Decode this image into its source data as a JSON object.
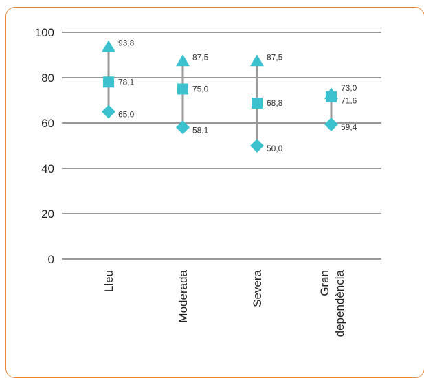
{
  "chart_data": {
    "type": "range-marker",
    "title": "",
    "xlabel": "",
    "ylabel": "",
    "ylim": [
      0,
      100
    ],
    "yticks": [
      0,
      20,
      40,
      60,
      80,
      100
    ],
    "grid": "horizontal",
    "categories": [
      [
        "Lleu"
      ],
      [
        "Moderada"
      ],
      [
        "Severa"
      ],
      [
        "Gran",
        "dependència"
      ]
    ],
    "series": [
      {
        "values": [
          93.8,
          87.5,
          87.5,
          73.0
        ],
        "labels": [
          "93,8",
          "87,5",
          "87,5",
          "73,0"
        ],
        "marker": "triangle"
      },
      {
        "values": [
          78.1,
          75.0,
          68.8,
          71.6
        ],
        "labels": [
          "78,1",
          "75,0",
          "68,8",
          "71,6"
        ],
        "marker": "square"
      },
      {
        "values": [
          65.0,
          58.1,
          50.0,
          59.4
        ],
        "labels": [
          "65,0",
          "58,1",
          "50,0",
          "59,4"
        ],
        "marker": "diamond"
      }
    ],
    "colors": {
      "marker": "#3cc2cf",
      "range_line": "#9a9a9a",
      "grid": "#333333",
      "frame": "#e8873a"
    }
  }
}
